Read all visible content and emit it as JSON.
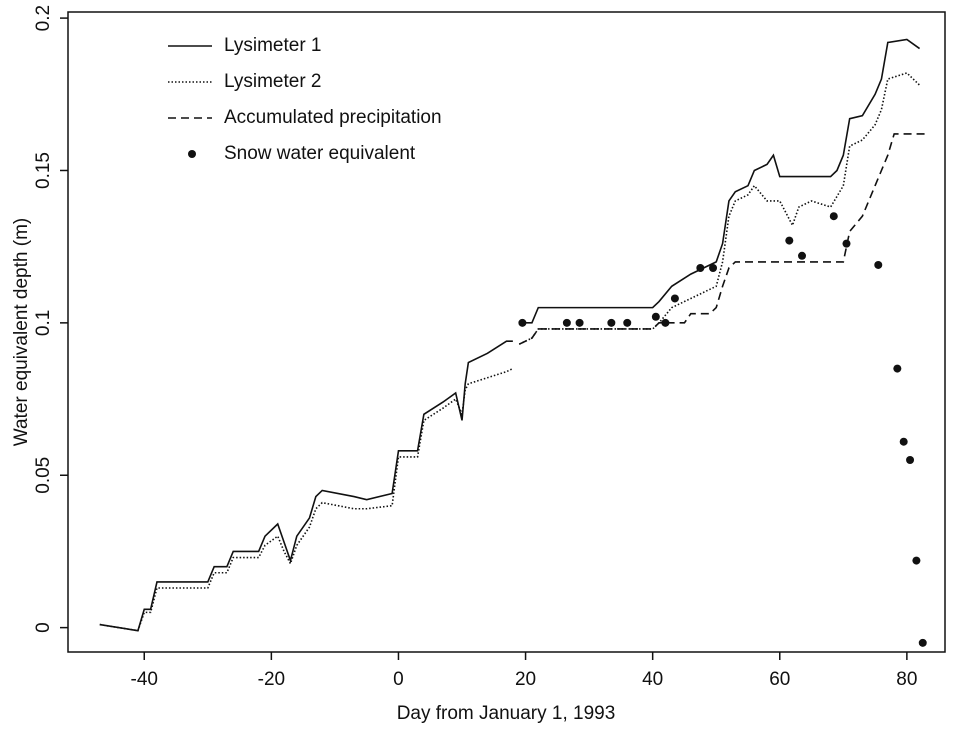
{
  "chart_data": {
    "type": "line",
    "xlabel": "Day from January 1, 1993",
    "ylabel": "Water equivalent depth (m)",
    "xlim": [
      -52,
      86
    ],
    "xticks": [
      -40,
      -20,
      0,
      20,
      40,
      60,
      80
    ],
    "ylim": [
      -0.008,
      0.202
    ],
    "yticks": [
      0.0,
      0.05,
      0.1,
      0.15,
      0.2
    ],
    "legend": "upper left",
    "series": [
      {
        "name": "Lysimeter 1",
        "type": "line",
        "dash": "solid",
        "color": "#111111",
        "x": [
          -47,
          -41,
          -40,
          -39,
          -38,
          -30,
          -29,
          -27,
          -26,
          -22,
          -21,
          -19,
          -18,
          -17,
          -16,
          -14,
          -13,
          -12,
          -7,
          -5,
          -1,
          0,
          1,
          3,
          4,
          7,
          9,
          10,
          10.5,
          11,
          14,
          17,
          18,
          18.5,
          19,
          21,
          22,
          40,
          41,
          43,
          46,
          48,
          50,
          51,
          52,
          53,
          55,
          56,
          58,
          59,
          60,
          65,
          68,
          69,
          70,
          71,
          73,
          75,
          76,
          77,
          80,
          82
        ],
        "values": [
          0.001,
          -0.001,
          0.006,
          0.006,
          0.015,
          0.015,
          0.02,
          0.02,
          0.025,
          0.025,
          0.03,
          0.034,
          0.028,
          0.022,
          0.03,
          0.036,
          0.043,
          0.045,
          0.043,
          0.042,
          0.044,
          0.058,
          0.058,
          0.058,
          0.07,
          0.074,
          0.077,
          0.068,
          0.08,
          0.087,
          0.09,
          0.094,
          0.094,
          null,
          0.1,
          0.1,
          0.105,
          0.105,
          0.107,
          0.112,
          0.116,
          0.118,
          0.12,
          0.126,
          0.14,
          0.143,
          0.145,
          0.15,
          0.152,
          0.155,
          0.148,
          0.148,
          0.148,
          0.15,
          0.155,
          0.167,
          0.168,
          0.175,
          0.18,
          0.192,
          0.193,
          0.19
        ]
      },
      {
        "name": "Lysimeter 2",
        "type": "line",
        "dash": "dotted",
        "color": "#111111",
        "x": [
          -47,
          -41,
          -40,
          -39,
          -38,
          -30,
          -29,
          -27,
          -26,
          -22,
          -21,
          -19,
          -18,
          -17,
          -16,
          -14,
          -13,
          -12,
          -7,
          -5,
          -1,
          0,
          1,
          3,
          4,
          7,
          9,
          10,
          10.5,
          11,
          14,
          17,
          18,
          18.5,
          19,
          21,
          22,
          40,
          41,
          43,
          46,
          48,
          50,
          51,
          52,
          53,
          55,
          56,
          58,
          60,
          62,
          63,
          65,
          68,
          70,
          71,
          73,
          75,
          76,
          77,
          80,
          82
        ],
        "values": [
          0.001,
          -0.001,
          0.005,
          0.005,
          0.013,
          0.013,
          0.018,
          0.018,
          0.023,
          0.023,
          0.027,
          0.03,
          0.025,
          0.021,
          0.027,
          0.033,
          0.039,
          0.041,
          0.039,
          0.039,
          0.04,
          0.056,
          0.056,
          0.056,
          0.068,
          0.072,
          0.075,
          0.07,
          0.078,
          0.08,
          0.082,
          0.084,
          0.085,
          null,
          0.093,
          0.095,
          0.098,
          0.098,
          0.1,
          0.105,
          0.108,
          0.11,
          0.112,
          0.12,
          0.135,
          0.14,
          0.142,
          0.145,
          0.14,
          0.14,
          0.132,
          0.138,
          0.14,
          0.138,
          0.145,
          0.158,
          0.16,
          0.165,
          0.17,
          0.18,
          0.182,
          0.178
        ]
      },
      {
        "name": "Accumulated precipitation",
        "type": "line",
        "dash": "dashed",
        "color": "#111111",
        "x": [
          19,
          21,
          22,
          40,
          41,
          45,
          46,
          49,
          50,
          51,
          52,
          53,
          70,
          71,
          73,
          75,
          77,
          78,
          83
        ],
        "values": [
          0.093,
          0.095,
          0.098,
          0.098,
          0.1,
          0.1,
          0.103,
          0.103,
          0.105,
          0.112,
          0.118,
          0.12,
          0.12,
          0.13,
          0.135,
          0.145,
          0.155,
          0.162,
          0.162
        ]
      },
      {
        "name": "Snow water equivalent",
        "type": "scatter",
        "color": "#111111",
        "x": [
          19.5,
          26.5,
          28.5,
          33.5,
          36,
          40.5,
          42,
          43.5,
          47.5,
          49.5,
          61.5,
          63.5,
          68.5,
          70.5,
          75.5,
          78.5,
          79.5,
          80.5,
          81.5,
          82.5
        ],
        "values": [
          0.1,
          0.1,
          0.1,
          0.1,
          0.1,
          0.102,
          0.1,
          0.108,
          0.118,
          0.118,
          0.127,
          0.122,
          0.135,
          0.126,
          0.119,
          0.085,
          0.061,
          0.055,
          0.022,
          -0.005
        ]
      }
    ]
  }
}
